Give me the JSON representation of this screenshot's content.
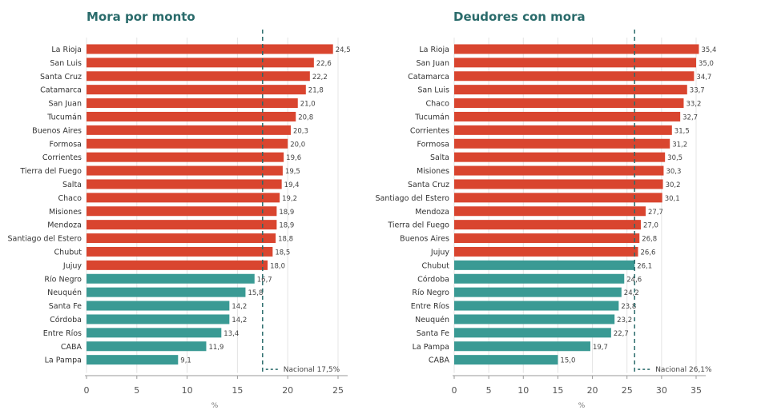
{
  "colors": {
    "above": "#d9452f",
    "below": "#3a9a94",
    "reference": "#2a6b6b"
  },
  "chart_data": [
    {
      "type": "bar",
      "orientation": "horizontal",
      "title": "Mora por monto",
      "xlabel": "%",
      "xlim": [
        0,
        25
      ],
      "xticks": [
        0,
        5,
        10,
        15,
        20,
        25
      ],
      "grid": true,
      "reference_line": {
        "value": 17.5,
        "label": "Nacional 17,5%"
      },
      "categories": [
        "La Rioja",
        "San Luis",
        "Santa Cruz",
        "Catamarca",
        "San Juan",
        "Tucumán",
        "Buenos Aires",
        "Formosa",
        "Corrientes",
        "Tierra del Fuego",
        "Salta",
        "Chaco",
        "Misiones",
        "Mendoza",
        "Santiago del Estero",
        "Chubut",
        "Jujuy",
        "Río Negro",
        "Neuquén",
        "Santa Fe",
        "Córdoba",
        "Entre Ríos",
        "CABA",
        "La Pampa"
      ],
      "values": [
        24.5,
        22.6,
        22.2,
        21.8,
        21.0,
        20.8,
        20.3,
        20.0,
        19.6,
        19.5,
        19.4,
        19.2,
        18.9,
        18.9,
        18.8,
        18.5,
        18.0,
        16.7,
        15.8,
        14.2,
        14.2,
        13.4,
        11.9,
        9.1
      ],
      "value_labels": [
        "24,5",
        "22,6",
        "22,2",
        "21,8",
        "21,0",
        "20,8",
        "20,3",
        "20,0",
        "19,6",
        "19,5",
        "19,4",
        "19,2",
        "18,9",
        "18,9",
        "18,8",
        "18,5",
        "18,0",
        "16,7",
        "15,8",
        "14,2",
        "14,2",
        "13,4",
        "11,9",
        "9,1"
      ]
    },
    {
      "type": "bar",
      "orientation": "horizontal",
      "title": "Deudores con mora",
      "xlabel": "%",
      "xlim": [
        0,
        37
      ],
      "xticks": [
        0,
        5,
        10,
        15,
        20,
        25,
        30,
        35
      ],
      "grid": true,
      "reference_line": {
        "value": 26.1,
        "label": "Nacional 26,1%"
      },
      "categories": [
        "La Rioja",
        "San Juan",
        "Catamarca",
        "San Luis",
        "Chaco",
        "Tucumán",
        "Corrientes",
        "Formosa",
        "Salta",
        "Misiones",
        "Santa Cruz",
        "Santiago del Estero",
        "Mendoza",
        "Tierra del Fuego",
        "Buenos Aires",
        "Jujuy",
        "Chubut",
        "Córdoba",
        "Río Negro",
        "Entre Ríos",
        "Neuquén",
        "Santa Fe",
        "La Pampa",
        "CABA"
      ],
      "values": [
        35.4,
        35.0,
        34.7,
        33.7,
        33.2,
        32.7,
        31.5,
        31.2,
        30.5,
        30.3,
        30.2,
        30.1,
        27.7,
        27.0,
        26.8,
        26.6,
        26.1,
        24.6,
        24.2,
        23.8,
        23.2,
        22.7,
        19.7,
        15.0
      ],
      "value_labels": [
        "35,4",
        "35,0",
        "34,7",
        "33,7",
        "33,2",
        "32,7",
        "31,5",
        "31,2",
        "30,5",
        "30,3",
        "30,2",
        "30,1",
        "27,7",
        "27,0",
        "26,8",
        "26,6",
        "26,1",
        "24,6",
        "24,2",
        "23,8",
        "23,2",
        "22,7",
        "19,7",
        "15,0"
      ],
      "above_count": 16
    }
  ]
}
